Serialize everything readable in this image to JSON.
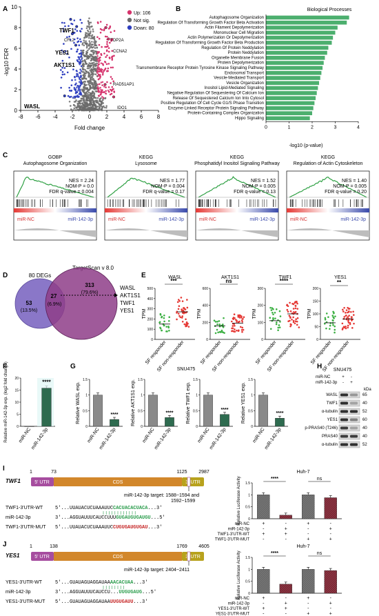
{
  "panels": {
    "A": {
      "label": "A",
      "legend": [
        {
          "text": "Up: 106",
          "color": "#d6336c"
        },
        {
          "text": "Not sig.",
          "color": "#6b6b6b"
        },
        {
          "text": "Down: 80",
          "color": "#2f3fbf"
        }
      ],
      "ylabel": "-log10 FDR",
      "xlabel": "Fold change",
      "genes": [
        "TWF1",
        "CFL2",
        "YES1",
        "AKT1S1",
        "WASL",
        "TOP2A",
        "CCNA2",
        "RAD51AP1",
        "IDO1"
      ]
    },
    "B": {
      "label": "B",
      "title": "Biological Processes",
      "xlabel": "-log10 (p-value)"
    },
    "C": {
      "label": "C",
      "plots": [
        {
          "cat": "GOBP",
          "name": "Autophagosome Organization",
          "nes": "NES = 2.24",
          "nom": "NOM-P = 0.0",
          "fdr": "FDR q-value = 0.004"
        },
        {
          "cat": "KEGG",
          "name": "Lysosome",
          "nes": "NES = 1.77",
          "nom": "NOM-P = 0.004",
          "fdr": "FDR q-value = 0.17"
        },
        {
          "cat": "KEGG",
          "name": "Phosphatidyl Inositol Signaling Pathway",
          "nes": "NES = 1.52",
          "nom": "NOM-P = 0.005",
          "fdr": "FDR q-value = 0.13"
        },
        {
          "cat": "KEGG",
          "name": "Regulation of Actin Cytoskeleton",
          "nes": "NES = 1.40",
          "nom": "NOM-P = 0.005",
          "fdr": "FDR q-value = 0.20"
        }
      ],
      "nc": "miR-NC",
      "mir": "miR-142-3p"
    },
    "D": {
      "label": "D",
      "set1": "80 DEGs",
      "set2": "TargetScan v 8.0",
      "left": "53",
      "left_pct": "(13.5%)",
      "mid": "27",
      "mid_pct": "(6.9%)",
      "right": "313",
      "right_pct": "(79.6%)",
      "targets": [
        "WASL",
        "AKT1S1",
        "TWF1",
        "YES1"
      ]
    },
    "E": {
      "label": "E",
      "ylabel": "TPM",
      "groups": [
        "SF responder",
        "SF non-responder"
      ],
      "plots": [
        {
          "gene": "WASL",
          "sig": "***"
        },
        {
          "gene": "AKT1S1",
          "sig": "ns"
        },
        {
          "gene": "TWF1",
          "sig": "****"
        },
        {
          "gene": "YES1",
          "sig": "**"
        }
      ]
    },
    "F": {
      "label": "F",
      "ylabel": "Relative miR-142-3p exp. (log2 fold change)",
      "sig": "****",
      "cats": [
        "miR-NC",
        "miR-142-3p"
      ]
    },
    "G": {
      "label": "G",
      "title": "SNU475",
      "cats": [
        "miR-NC",
        "miR-142-3p"
      ],
      "sig": "****",
      "plots": [
        {
          "ylabel": "Relative WASL exp."
        },
        {
          "ylabel": "Relative AKT1S1 exp."
        },
        {
          "ylabel": "Relative TWF1 exp."
        },
        {
          "ylabel": "Relative YES1 exp."
        }
      ]
    },
    "H": {
      "label": "H",
      "title": "SNU475",
      "rows_head": [
        "miR-NC",
        "miR-142-3p"
      ],
      "cond1": [
        "+",
        "-"
      ],
      "cond2": [
        "-",
        "+"
      ],
      "kda": "kDa",
      "bands": [
        {
          "name": "WASL",
          "kda": "65"
        },
        {
          "name": "TWF1",
          "kda": "40"
        },
        {
          "name": "α-tubulin",
          "kda": "52"
        },
        {
          "name": "YES1",
          "kda": "60"
        },
        {
          "name": "p-PRAS40 (T246)",
          "kda": "40"
        },
        {
          "name": "PRAS40",
          "kda": "40"
        },
        {
          "name": "α-tubulin",
          "kda": "52"
        }
      ]
    },
    "I": {
      "label": "I",
      "gene": "TWF1",
      "pos": [
        "1",
        "73",
        "1125",
        "2987"
      ],
      "utr5": "5' UTR",
      "cds": "CDS",
      "utr3": "3' UTR",
      "target1": "miR-142-3p target: 1588~1594 and",
      "target2": "1592~1599",
      "wt_label": "TWF1-3'UTR-WT",
      "wt_a": "5'...UUAUACUCUAAAUUC",
      "wt_b": "CACUACACUACA",
      "wt_c": "...3'",
      "mir_label": "miR-142-3p",
      "mir_a": "3'...AGGUAUUUCAUCCUUU",
      "mir_b": "GUGAUGUGAUGU",
      "mir_c": "...5'",
      "mut_label": "TWF1-3'UTR-MUT",
      "mut_a": "5'...UUAUACUCUAAAUUC",
      "mut_b": "CUGUGAUGUGAU",
      "mut_c": "...3'",
      "bar_title": "Huh-7",
      "bar_ylabel": "Relative Luciferase Activity",
      "sig": "****",
      "ns": "ns",
      "rows": [
        "miR-NC",
        "miR-142-3p",
        "TWF1-3'UTR-WT",
        "TWF1-3'UTR-MUT"
      ],
      "signs": [
        [
          "+",
          "-",
          "+",
          "-"
        ],
        [
          "-",
          "+",
          "-",
          "+"
        ],
        [
          "+",
          "+",
          "-",
          "-"
        ],
        [
          "-",
          "-",
          "+",
          "+"
        ]
      ]
    },
    "J": {
      "label": "J",
      "gene": "YES1",
      "pos": [
        "1",
        "138",
        "1769",
        "4605"
      ],
      "utr5": "5' UTR",
      "cds": "CDS",
      "utr3": "3' UTR",
      "target1": "miR-142-3p target: 2404~2411",
      "wt_label": "YES1-3'UTR-WT",
      "wt_a": "5'...GUAUAGUAGGAUAA",
      "wt_b": "AACACUAA",
      "wt_c": "...3'",
      "mir_label": "miR-142-3p",
      "mir_a": "3'...AGGUAUUUCAUCCU...",
      "mir_b": "UUGUGAUG",
      "mir_c": "...5'",
      "mut_label": "YES1-3'UTR-MUT",
      "mut_a": "5'...GUAUAGUAGGAUAA",
      "mut_b": "UUGUGAUU",
      "mut_c": "...3'",
      "bar_title": "Huh-7",
      "bar_ylabel": "Relative Luciferase Activity",
      "sig": "****",
      "ns": "ns",
      "rows": [
        "miR-NC",
        "miR-142-3p",
        "YES1-3'UTR-WT",
        "YES1-3'UTR-MUT"
      ],
      "signs": [
        [
          "+",
          "-",
          "+",
          "-"
        ],
        [
          "-",
          "+",
          "-",
          "+"
        ],
        [
          "+",
          "+",
          "-",
          "-"
        ],
        [
          "-",
          "-",
          "+",
          "+"
        ]
      ]
    }
  },
  "chart_data": [
    {
      "type": "scatter",
      "id": "A-volcano",
      "xlabel": "Fold change",
      "ylabel": "-log10 FDR",
      "xlim": [
        -8,
        8
      ],
      "ylim": [
        0,
        10
      ],
      "xticks": [
        -8,
        -6,
        -4,
        -2,
        0,
        2,
        4,
        6,
        8
      ],
      "yticks": [
        0,
        2,
        4,
        6,
        8,
        10
      ],
      "highlighted": [
        {
          "label": "TWF1",
          "x": -2.2,
          "y": 8.8
        },
        {
          "label": "CFL2",
          "x": -1.5,
          "y": 8.1
        },
        {
          "label": "YES1",
          "x": -2.0,
          "y": 7.4
        },
        {
          "label": "AKT1S1",
          "x": -1.6,
          "y": 6.3
        },
        {
          "label": "WASL",
          "x": -2.9,
          "y": 1.4
        },
        {
          "label": "TOP2A",
          "x": 1.9,
          "y": 8.0
        },
        {
          "label": "CCNA2",
          "x": 2.2,
          "y": 6.9
        },
        {
          "label": "RAD51AP1",
          "x": 1.8,
          "y": 2.5
        },
        {
          "label": "IDO1",
          "x": 2.8,
          "y": 1.3
        }
      ]
    },
    {
      "type": "bar",
      "id": "B-processes",
      "orientation": "horizontal",
      "xlabel": "-log10 (p-value)",
      "xlim": [
        0,
        4
      ],
      "xticks": [
        0,
        1,
        2,
        3,
        4
      ],
      "categories": [
        "Autophagosome Organization",
        "Regulation Of Transforming Growth Factor Beta Activation",
        "Actin Filament Depolymerization",
        "Mononuclear Cell Migration",
        "Actin Polymerization Or Depolymerization",
        "Regulation Of Transforming Growth Factor Beta Production",
        "Regulation Of Protein Neddylation",
        "Protein Neddylation",
        "Organelle Membrane Fusion",
        "Protein Depolymerization",
        "Transmembrane Receptor Protein Tyrosine Kinase Signaling Pathway",
        "Endosomal Transport",
        "Vesicle-Mediated Transport",
        "Vesicle Organization",
        "Inositol Lipid-Mediated Signaling",
        "Negative Regulation Of Sequestering Of Calcium Ion",
        "Release Of Sequestered Calcium Ion Into Cytosol",
        "Positive Regulation Of Cell Cycle G1/S Phase Transition",
        "Enzyme-Linked Receptor Protein Signaling Pathway",
        "Protein-Containing Complex Organization",
        "Hippo Signaling"
      ],
      "values": [
        3.6,
        3.5,
        3.1,
        3.0,
        2.9,
        2.85,
        2.7,
        2.65,
        2.55,
        2.5,
        2.45,
        2.4,
        2.35,
        2.3,
        2.25,
        2.2,
        2.15,
        2.1,
        2.05,
        2.0,
        1.9
      ]
    },
    {
      "type": "scatter",
      "id": "E-tpm",
      "plots": [
        {
          "gene": "WASL",
          "ylim": [
            0,
            500
          ],
          "yticks": [
            0,
            100,
            200,
            300,
            400,
            500
          ],
          "responder_median": 150,
          "nonresponder_median": 270
        },
        {
          "gene": "AKT1S1",
          "ylim": [
            0,
            600
          ],
          "yticks": [
            0,
            200,
            400,
            600
          ],
          "responder_median": 160,
          "nonresponder_median": 190
        },
        {
          "gene": "TWF1",
          "ylim": [
            0,
            300
          ],
          "yticks": [
            0,
            100,
            200,
            300
          ],
          "responder_median": 110,
          "nonresponder_median": 150
        },
        {
          "gene": "YES1",
          "ylim": [
            0,
            200
          ],
          "yticks": [
            0,
            50,
            100,
            150,
            200
          ],
          "responder_median": 65,
          "nonresponder_median": 80
        }
      ]
    },
    {
      "type": "bar",
      "id": "F-mir-expression",
      "categories": [
        "miR-NC",
        "miR-142-3p"
      ],
      "values": [
        0,
        15.8
      ],
      "ylim": [
        0,
        20
      ],
      "yticks": [
        0,
        5,
        10,
        15,
        20
      ]
    },
    {
      "type": "bar",
      "id": "G-target-expression",
      "categories": [
        "miR-NC",
        "miR-142-3p"
      ],
      "ylim": [
        0,
        1.5
      ],
      "yticks": [
        0,
        0.5,
        1.0,
        1.5
      ],
      "series": [
        {
          "name": "WASL",
          "values": [
            1.0,
            0.22
          ]
        },
        {
          "name": "AKT1S1",
          "values": [
            1.0,
            0.28
          ]
        },
        {
          "name": "TWF1",
          "values": [
            1.0,
            0.38
          ]
        },
        {
          "name": "YES1",
          "values": [
            1.0,
            0.26
          ]
        }
      ]
    },
    {
      "type": "bar",
      "id": "I-luciferase",
      "ylim": [
        0,
        1.5
      ],
      "yticks": [
        0,
        0.5,
        1.0,
        1.5
      ],
      "values": [
        1.0,
        0.15,
        1.0,
        0.88
      ]
    },
    {
      "type": "bar",
      "id": "J-luciferase",
      "ylim": [
        0,
        1.5
      ],
      "yticks": [
        0,
        0.5,
        1.0,
        1.5
      ],
      "values": [
        1.0,
        0.38,
        1.0,
        0.95
      ]
    }
  ]
}
